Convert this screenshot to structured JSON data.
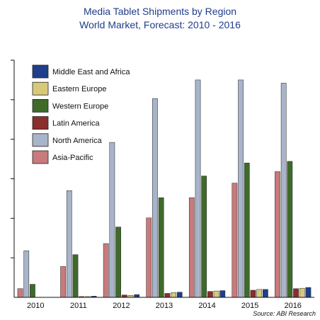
{
  "chart_data": {
    "type": "bar",
    "title": "Media Tablet Shipments by Region",
    "subtitle": "World Market, Forecast: 2010 - 2016",
    "xlabel": "",
    "ylabel": "",
    "source": "Source: ABI Research",
    "categories": [
      "2010",
      "2011",
      "2012",
      "2013",
      "2014",
      "2015",
      "2016"
    ],
    "ylim": [
      0,
      6
    ],
    "grid": false,
    "legend_position": "top-left",
    "series": [
      {
        "name": "Asia-Pacific",
        "color": "#c97a7c",
        "values": [
          0.22,
          0.78,
          1.36,
          2.01,
          2.52,
          2.89,
          3.18
        ]
      },
      {
        "name": "North America",
        "color": "#a8b4c9",
        "values": [
          1.18,
          2.7,
          3.92,
          5.03,
          5.5,
          5.5,
          5.42
        ]
      },
      {
        "name": "Western Europe",
        "color": "#3f6a2a",
        "values": [
          0.33,
          1.08,
          1.78,
          2.52,
          3.07,
          3.4,
          3.44
        ]
      },
      {
        "name": "Latin America",
        "color": "#8a2e2e",
        "values": [
          0.0,
          0.02,
          0.06,
          0.1,
          0.15,
          0.18,
          0.22
        ]
      },
      {
        "name": "Eastern Europe",
        "color": "#d8c97a",
        "values": [
          0.0,
          0.02,
          0.05,
          0.12,
          0.16,
          0.2,
          0.23
        ]
      },
      {
        "name": "Middle East and Africa",
        "color": "#1f3f8a",
        "values": [
          0.0,
          0.03,
          0.07,
          0.13,
          0.17,
          0.2,
          0.25
        ]
      }
    ],
    "legend_order": [
      "Middle East and Africa",
      "Eastern Europe",
      "Western Europe",
      "Latin America",
      "North America",
      "Asia-Pacific"
    ]
  }
}
